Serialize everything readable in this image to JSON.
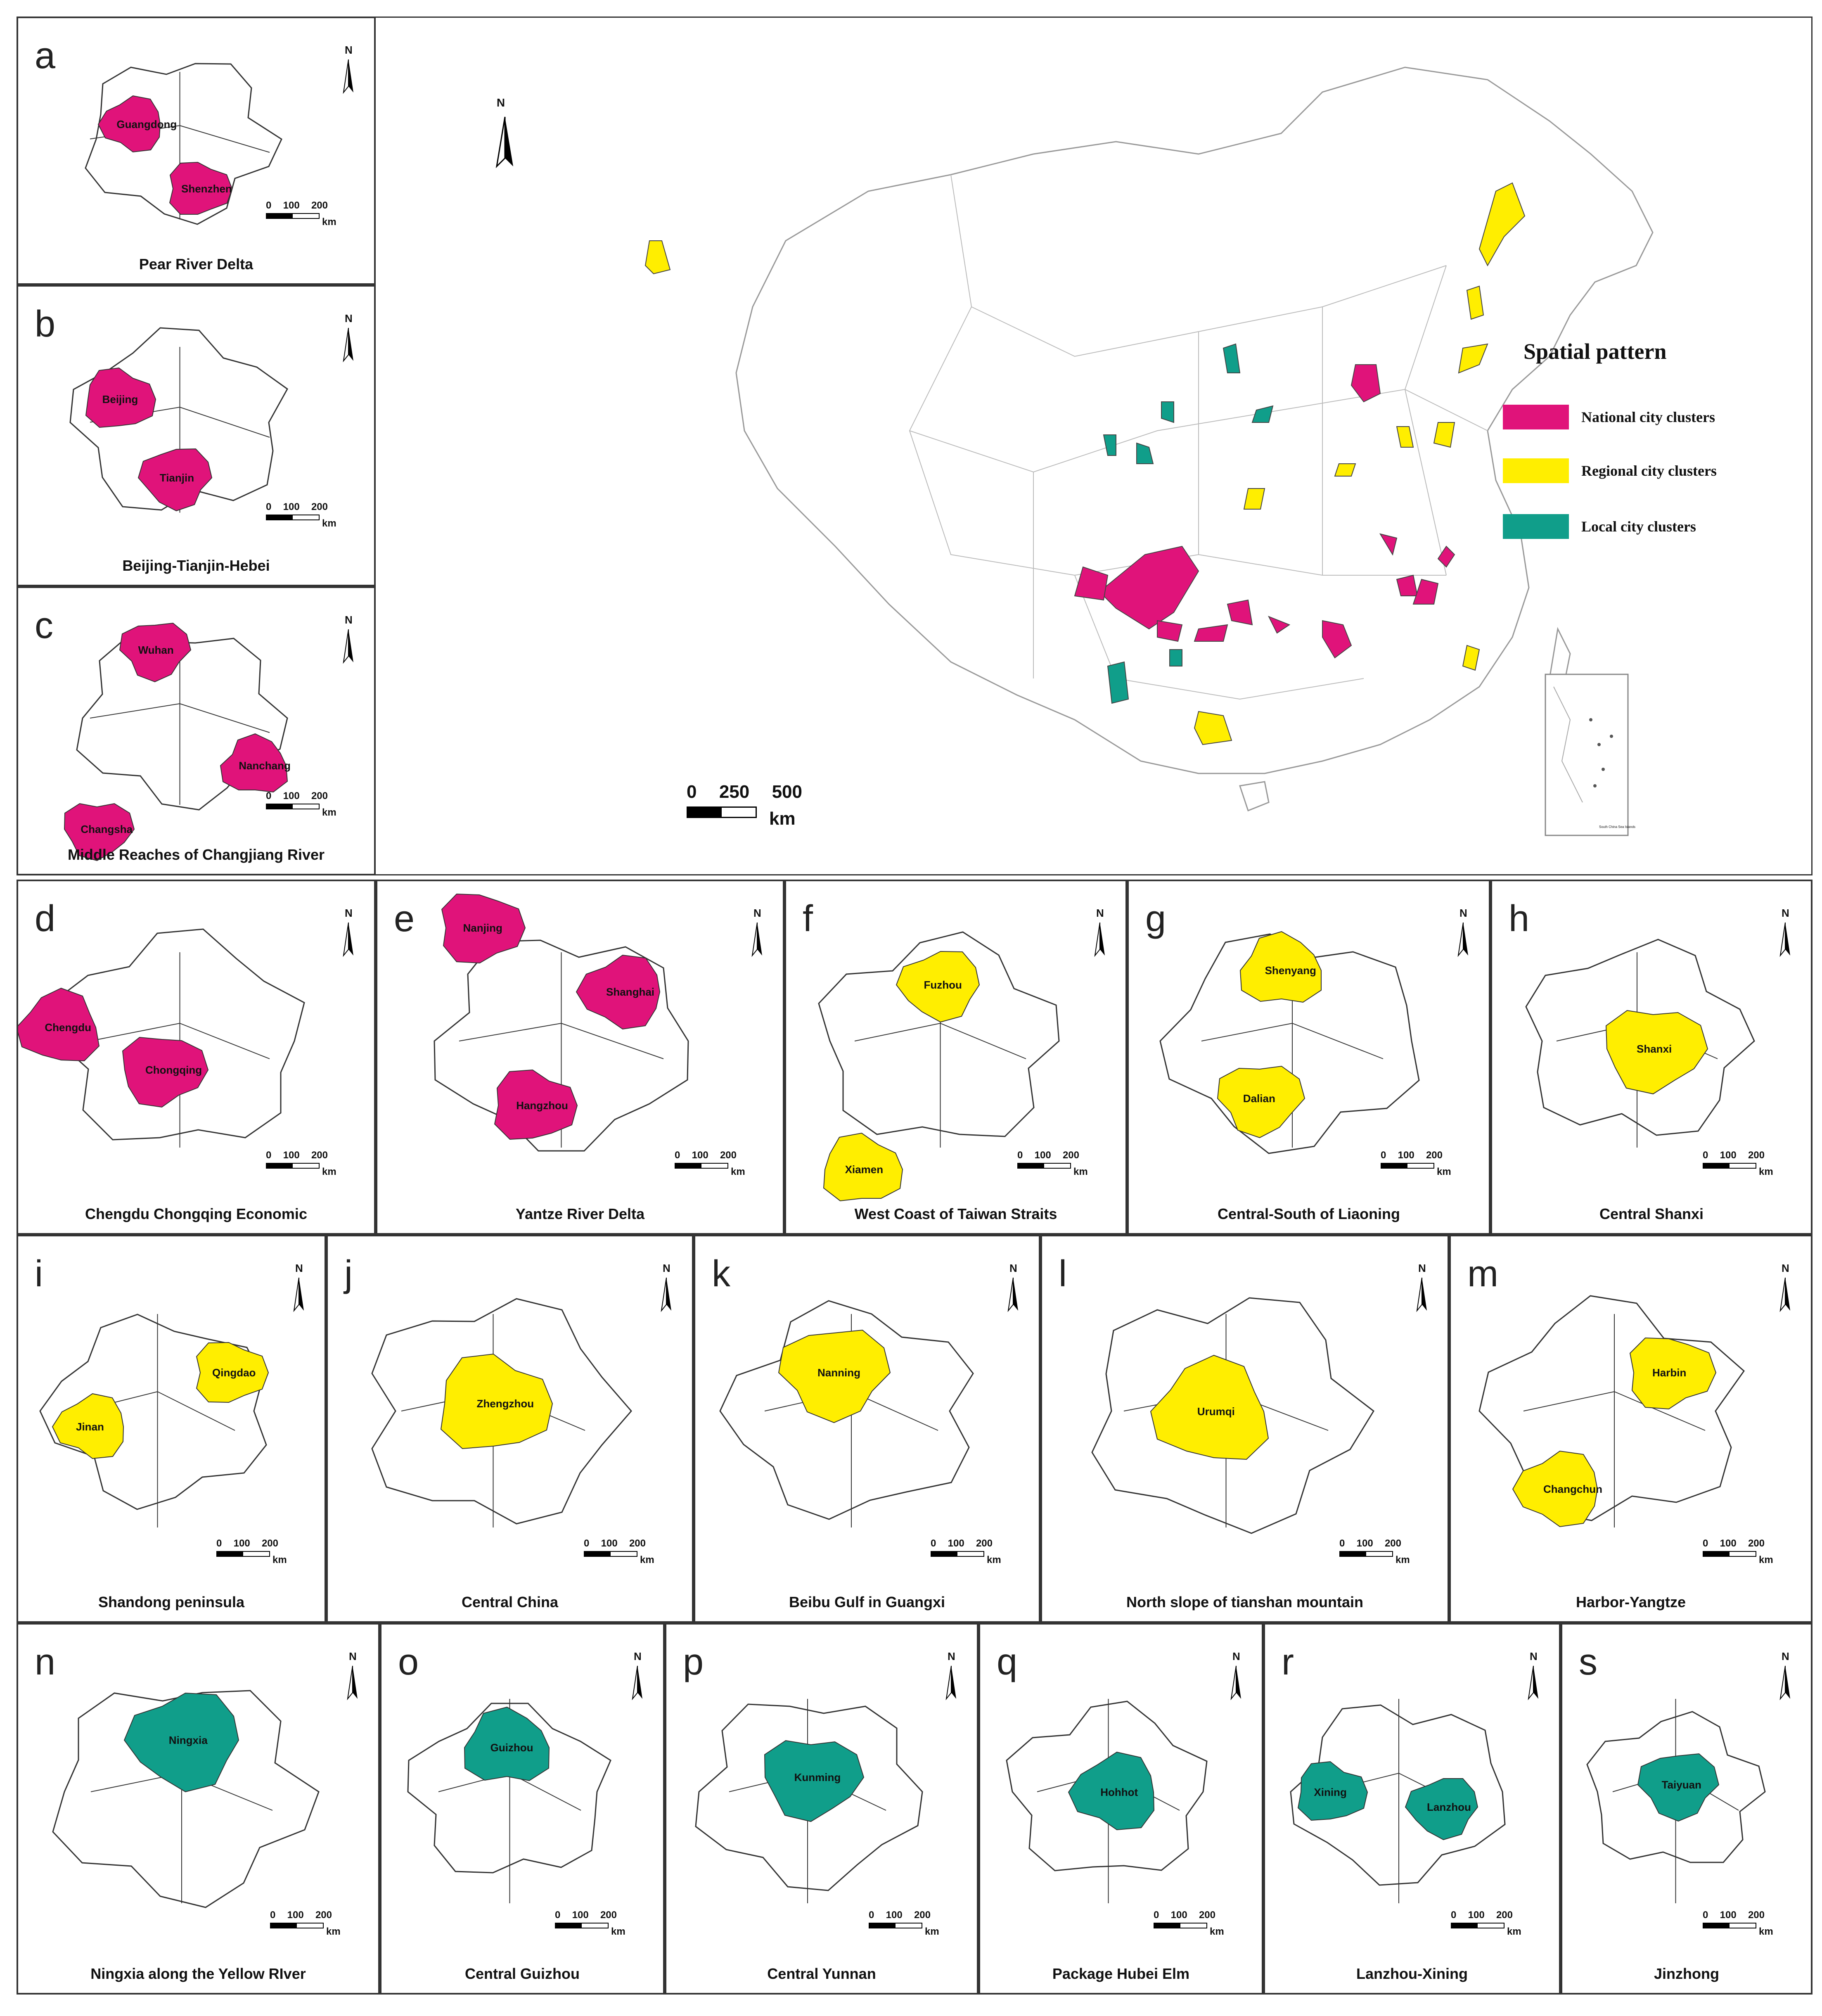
{
  "colors": {
    "national": "#e0137a",
    "regional": "#ffee00",
    "local": "#109e8a",
    "outline": "#444444"
  },
  "main_map": {
    "north": "N",
    "scale_numbers": [
      "0",
      "250",
      "500"
    ],
    "scale_unit": "km",
    "legend": {
      "title": "Spatial pattern",
      "items": [
        {
          "label": "National city clusters",
          "color": "#e0137a"
        },
        {
          "label": "Regional city clusters",
          "color": "#ffee00"
        },
        {
          "label": "Local city clusters",
          "color": "#109e8a"
        }
      ]
    },
    "inset_caption": "South China Sea Islands"
  },
  "panels": [
    {
      "letter": "a",
      "title": "Pear River Delta",
      "type": "national",
      "cities": [
        "Guangdong",
        "Shenzhen"
      ],
      "scale": [
        "0",
        "100",
        "200"
      ],
      "unit": "km"
    },
    {
      "letter": "b",
      "title": "Beijing-Tianjin-Hebei",
      "type": "national",
      "cities": [
        "Beijing",
        "Tianjin"
      ],
      "scale": [
        "0",
        "100",
        "200"
      ],
      "unit": "km"
    },
    {
      "letter": "c",
      "title": "Middle Reaches of Changjiang River",
      "type": "national",
      "cities": [
        "Wuhan",
        "Nanchang",
        "Changsha"
      ],
      "scale": [
        "0",
        "100",
        "200"
      ],
      "unit": "km"
    },
    {
      "letter": "d",
      "title": "Chengdu Chongqing Economic",
      "type": "national",
      "cities": [
        "Chengdu",
        "Chongqing"
      ],
      "scale": [
        "0",
        "100",
        "200"
      ],
      "unit": "km"
    },
    {
      "letter": "e",
      "title": "Yantze River Delta",
      "type": "national",
      "cities": [
        "Nanjing",
        "Shanghai",
        "Hangzhou"
      ],
      "scale": [
        "0",
        "100",
        "200"
      ],
      "unit": "km"
    },
    {
      "letter": "f",
      "title": "West Coast of Taiwan Straits",
      "type": "regional",
      "cities": [
        "Fuzhou",
        "Xiamen"
      ],
      "scale": [
        "0",
        "100",
        "200"
      ],
      "unit": "km"
    },
    {
      "letter": "g",
      "title": "Central-South of Liaoning",
      "type": "regional",
      "cities": [
        "Shenyang",
        "Dalian"
      ],
      "scale": [
        "0",
        "100",
        "200"
      ],
      "unit": "km"
    },
    {
      "letter": "h",
      "title": "Central Shanxi",
      "type": "regional",
      "cities": [
        "Shanxi"
      ],
      "scale": [
        "0",
        "100",
        "200"
      ],
      "unit": "km"
    },
    {
      "letter": "i",
      "title": "Shandong peninsula",
      "type": "regional",
      "cities": [
        "Jinan",
        "Qingdao"
      ],
      "scale": [
        "0",
        "100",
        "200"
      ],
      "unit": "km"
    },
    {
      "letter": "j",
      "title": "Central China",
      "type": "regional",
      "cities": [
        "Zhengzhou"
      ],
      "scale": [
        "0",
        "100",
        "200"
      ],
      "unit": "km"
    },
    {
      "letter": "k",
      "title": "Beibu Gulf in Guangxi",
      "type": "regional",
      "cities": [
        "Nanning"
      ],
      "scale": [
        "0",
        "100",
        "200"
      ],
      "unit": "km"
    },
    {
      "letter": "l",
      "title": "North slope of tianshan mountain",
      "type": "regional",
      "cities": [
        "Urumqi"
      ],
      "scale": [
        "0",
        "100",
        "200"
      ],
      "unit": "km"
    },
    {
      "letter": "m",
      "title": "Harbor-Yangtze",
      "type": "regional",
      "cities": [
        "Harbin",
        "Changchun"
      ],
      "scale": [
        "0",
        "100",
        "200"
      ],
      "unit": "km"
    },
    {
      "letter": "n",
      "title": "Ningxia along the Yellow RIver",
      "type": "local",
      "cities": [
        "Ningxia"
      ],
      "scale": [
        "0",
        "100",
        "200"
      ],
      "unit": "km"
    },
    {
      "letter": "o",
      "title": "Central Guizhou",
      "type": "local",
      "cities": [
        "Guizhou"
      ],
      "scale": [
        "0",
        "100",
        "200"
      ],
      "unit": "km"
    },
    {
      "letter": "p",
      "title": "Central Yunnan",
      "type": "local",
      "cities": [
        "Kunming"
      ],
      "scale": [
        "0",
        "100",
        "200"
      ],
      "unit": "km"
    },
    {
      "letter": "q",
      "title": "Package Hubei Elm",
      "type": "local",
      "cities": [
        "Hohhot"
      ],
      "scale": [
        "0",
        "100",
        "200"
      ],
      "unit": "km"
    },
    {
      "letter": "r",
      "title": "Lanzhou-Xining",
      "type": "local",
      "cities": [
        "Xining",
        "Lanzhou"
      ],
      "scale": [
        "0",
        "100",
        "200"
      ],
      "unit": "km"
    },
    {
      "letter": "s",
      "title": "Jinzhong",
      "type": "local",
      "cities": [
        "Taiyuan"
      ],
      "scale": [
        "0",
        "100",
        "200"
      ],
      "unit": "km"
    }
  ]
}
